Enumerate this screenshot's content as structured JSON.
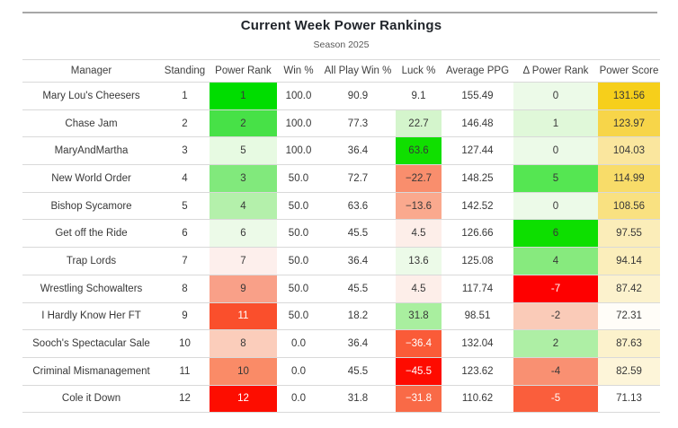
{
  "title": "Current Week Power Rankings",
  "subtitle": "Season 2025",
  "colors": {
    "max_green": "#00dd00",
    "max_red": "#fe0000",
    "gold": "#f6cf1b",
    "row_border": "#d9d9d9",
    "top_rule": "#a7a7a7"
  },
  "chart_data": {
    "type": "table",
    "title": "Current Week Power Rankings",
    "subtitle": "Season 2025",
    "columns": [
      "Manager",
      "Standing",
      "Power Rank",
      "Win %",
      "All Play Win %",
      "Luck %",
      "Average PPG",
      "Δ Power Rank",
      "Power Score"
    ],
    "column_keys": [
      "manager",
      "standing",
      "power-rank",
      "win-pct",
      "all-play-win-pct",
      "luck-pct",
      "average-ppg",
      "delta-power-rank",
      "power-score"
    ],
    "rows": [
      [
        {
          "t": "Mary Lou's Cheesers"
        },
        {
          "t": "1"
        },
        {
          "t": "1",
          "bg": "#00dd00"
        },
        {
          "t": "100.0"
        },
        {
          "t": "90.9"
        },
        {
          "t": "9.1",
          "bg": "#ffffff"
        },
        {
          "t": "155.49"
        },
        {
          "t": "0",
          "bg": "#ecfae8"
        },
        {
          "t": "131.56",
          "bg": "#f6cf1b"
        }
      ],
      [
        {
          "t": "Chase Jam"
        },
        {
          "t": "2"
        },
        {
          "t": "2",
          "bg": "#47e147"
        },
        {
          "t": "100.0"
        },
        {
          "t": "77.3"
        },
        {
          "t": "22.7",
          "bg": "#d4f5cc"
        },
        {
          "t": "146.48"
        },
        {
          "t": "1",
          "bg": "#e0f8d9"
        },
        {
          "t": "123.97",
          "bg": "#f7d549"
        }
      ],
      [
        {
          "t": "MaryAndMartha"
        },
        {
          "t": "3"
        },
        {
          "t": "5",
          "bg": "#e7fae2"
        },
        {
          "t": "100.0"
        },
        {
          "t": "36.4"
        },
        {
          "t": "63.6",
          "bg": "#10df00"
        },
        {
          "t": "127.44"
        },
        {
          "t": "0",
          "bg": "#ecfae8"
        },
        {
          "t": "104.03",
          "bg": "#fae69e"
        }
      ],
      [
        {
          "t": "New World Order"
        },
        {
          "t": "4"
        },
        {
          "t": "3",
          "bg": "#81e97c"
        },
        {
          "t": "50.0"
        },
        {
          "t": "72.7"
        },
        {
          "t": "−22.7",
          "bg": "#f98e6d"
        },
        {
          "t": "148.25"
        },
        {
          "t": "5",
          "bg": "#55e652"
        },
        {
          "t": "114.99",
          "bg": "#f8dc69"
        }
      ],
      [
        {
          "t": "Bishop Sycamore"
        },
        {
          "t": "5"
        },
        {
          "t": "4",
          "bg": "#b4f0ab"
        },
        {
          "t": "50.0"
        },
        {
          "t": "63.6"
        },
        {
          "t": "−13.6",
          "bg": "#faa98e"
        },
        {
          "t": "142.52"
        },
        {
          "t": "0",
          "bg": "#ecfae8"
        },
        {
          "t": "108.56",
          "bg": "#f9e181"
        }
      ],
      [
        {
          "t": "Get off the Ride"
        },
        {
          "t": "6"
        },
        {
          "t": "6",
          "bg": "#ecfae8"
        },
        {
          "t": "50.0"
        },
        {
          "t": "45.5"
        },
        {
          "t": "4.5",
          "bg": "#fdeee9"
        },
        {
          "t": "126.66"
        },
        {
          "t": "6",
          "bg": "#0ddf00"
        },
        {
          "t": "97.55",
          "bg": "#fbedb9"
        }
      ],
      [
        {
          "t": "Trap Lords"
        },
        {
          "t": "7"
        },
        {
          "t": "7",
          "bg": "#fdefec"
        },
        {
          "t": "50.0"
        },
        {
          "t": "36.4"
        },
        {
          "t": "13.6",
          "bg": "#ecfae8"
        },
        {
          "t": "125.08"
        },
        {
          "t": "4",
          "bg": "#87ea7e"
        },
        {
          "t": "94.14",
          "bg": "#fbeebb"
        }
      ],
      [
        {
          "t": "Wrestling Schowalters"
        },
        {
          "t": "8"
        },
        {
          "t": "9",
          "bg": "#f9a088"
        },
        {
          "t": "50.0"
        },
        {
          "t": "45.5"
        },
        {
          "t": "4.5",
          "bg": "#fdeee9"
        },
        {
          "t": "117.74"
        },
        {
          "t": "-7",
          "bg": "#fe0000",
          "fg": "#ffffff"
        },
        {
          "t": "87.42",
          "bg": "#fcf2cd"
        }
      ],
      [
        {
          "t": "I Hardly Know Her FT"
        },
        {
          "t": "9"
        },
        {
          "t": "11",
          "bg": "#fa4f2c",
          "fg": "#ffffff"
        },
        {
          "t": "50.0"
        },
        {
          "t": "18.2"
        },
        {
          "t": "31.8",
          "bg": "#a9ef9f"
        },
        {
          "t": "98.51"
        },
        {
          "t": "-2",
          "bg": "#facbb8"
        },
        {
          "t": "72.31",
          "bg": "#fffdf8"
        }
      ],
      [
        {
          "t": "Sooch's Spectacular Sale"
        },
        {
          "t": "10"
        },
        {
          "t": "8",
          "bg": "#fbcdbb"
        },
        {
          "t": "0.0"
        },
        {
          "t": "36.4"
        },
        {
          "t": "−36.4",
          "bg": "#fa5b38",
          "fg": "#ffffff"
        },
        {
          "t": "132.04"
        },
        {
          "t": "2",
          "bg": "#aeefa5"
        },
        {
          "t": "87.63",
          "bg": "#fcf2cc"
        }
      ],
      [
        {
          "t": "Criminal Mismanagement"
        },
        {
          "t": "11"
        },
        {
          "t": "10",
          "bg": "#fa8b67"
        },
        {
          "t": "0.0"
        },
        {
          "t": "45.5"
        },
        {
          "t": "−45.5",
          "bg": "#fe0b00",
          "fg": "#ffffff"
        },
        {
          "t": "123.62"
        },
        {
          "t": "-4",
          "bg": "#f99072"
        },
        {
          "t": "82.59",
          "bg": "#fdf5d9"
        }
      ],
      [
        {
          "t": "Cole it Down"
        },
        {
          "t": "12"
        },
        {
          "t": "12",
          "bg": "#fd0d00",
          "fg": "#ffffff"
        },
        {
          "t": "0.0"
        },
        {
          "t": "31.8"
        },
        {
          "t": "−31.8",
          "bg": "#f96a47",
          "fg": "#ffffff"
        },
        {
          "t": "110.62"
        },
        {
          "t": "-5",
          "bg": "#fa5e3c",
          "fg": "#ffffff"
        },
        {
          "t": "71.13",
          "bg": "#ffffff"
        }
      ]
    ]
  }
}
